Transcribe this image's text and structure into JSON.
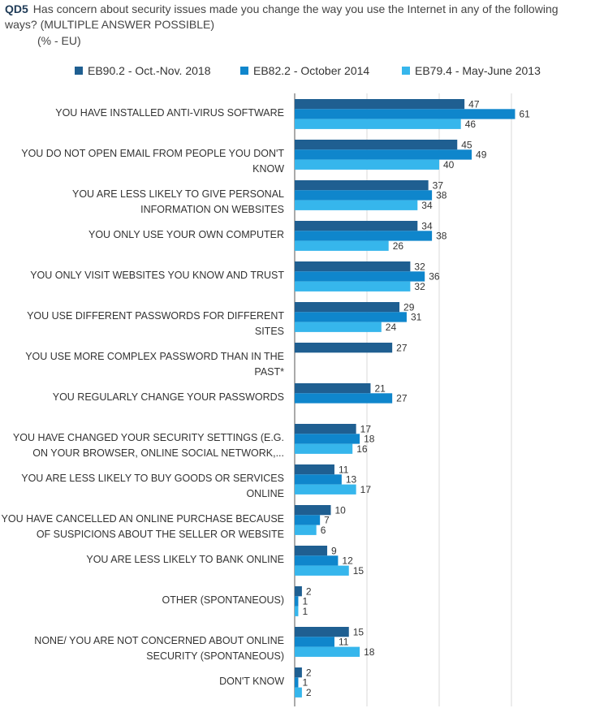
{
  "header": {
    "qid": "QD5",
    "question": "Has concern about security issues made you change the way you use the Internet in any of the following ways? (MULTIPLE ANSWER POSSIBLE)",
    "unit": "(% - EU)"
  },
  "colors": {
    "series0": "#1f5f91",
    "series1": "#0f86cc",
    "series2": "#36b6ec",
    "grid": "#d9d9d9",
    "axis": "#555555"
  },
  "chart_data": {
    "type": "bar",
    "orientation": "horizontal",
    "title": "Has concern about security issues made you change the way you use the Internet in any of the following ways? (MULTIPLE ANSWER POSSIBLE)",
    "xlim": [
      0,
      70
    ],
    "grid": true,
    "legend_position": "top",
    "categories": [
      "YOU HAVE INSTALLED ANTI-VIRUS SOFTWARE",
      "YOU DO NOT OPEN EMAIL FROM PEOPLE YOU DON'T KNOW",
      "YOU ARE LESS LIKELY TO GIVE PERSONAL INFORMATION ON WEBSITES",
      "YOU ONLY USE YOUR OWN COMPUTER",
      "YOU ONLY VISIT WEBSITES YOU KNOW AND TRUST",
      "YOU USE DIFFERENT PASSWORDS FOR DIFFERENT SITES",
      "YOU USE MORE COMPLEX PASSWORD THAN IN THE PAST*",
      "YOU REGULARLY CHANGE YOUR PASSWORDS",
      "YOU HAVE CHANGED YOUR SECURITY SETTINGS (E.G. ON YOUR BROWSER, ONLINE SOCIAL NETWORK,...",
      "YOU ARE LESS LIKELY TO BUY GOODS OR SERVICES ONLINE",
      "YOU HAVE CANCELLED AN ONLINE PURCHASE BECAUSE OF SUSPICIONS ABOUT THE SELLER OR WEBSITE",
      "YOU ARE LESS LIKELY TO BANK ONLINE",
      "OTHER (SPONTANEOUS)",
      "NONE/ YOU ARE NOT CONCERNED ABOUT ONLINE SECURITY (SPONTANEOUS)",
      "DON'T KNOW"
    ],
    "category_lines": [
      [
        "YOU HAVE INSTALLED ANTI-VIRUS SOFTWARE"
      ],
      [
        "YOU DO NOT OPEN EMAIL FROM PEOPLE YOU DON'T",
        "KNOW"
      ],
      [
        "YOU ARE LESS LIKELY TO GIVE PERSONAL",
        "INFORMATION ON WEBSITES"
      ],
      [
        "YOU ONLY USE YOUR OWN COMPUTER"
      ],
      [
        "YOU ONLY VISIT WEBSITES YOU KNOW AND TRUST"
      ],
      [
        "YOU USE DIFFERENT PASSWORDS FOR DIFFERENT SITES"
      ],
      [
        "YOU USE MORE COMPLEX PASSWORD THAN IN THE",
        "PAST*"
      ],
      [
        "YOU REGULARLY CHANGE YOUR PASSWORDS"
      ],
      [
        "YOU HAVE CHANGED YOUR SECURITY SETTINGS (E.G.",
        "ON YOUR BROWSER, ONLINE SOCIAL NETWORK,..."
      ],
      [
        "YOU ARE LESS LIKELY TO BUY GOODS OR SERVICES",
        "ONLINE"
      ],
      [
        "YOU HAVE CANCELLED AN ONLINE PURCHASE BECAUSE",
        "OF SUSPICIONS ABOUT THE SELLER OR WEBSITE"
      ],
      [
        "YOU ARE LESS LIKELY TO BANK ONLINE"
      ],
      [
        "OTHER (SPONTANEOUS)"
      ],
      [
        "NONE/ YOU ARE NOT CONCERNED ABOUT ONLINE",
        "SECURITY (SPONTANEOUS)"
      ],
      [
        "DON'T KNOW"
      ]
    ],
    "series": [
      {
        "name": "EB90.2 - Oct.-Nov. 2018",
        "values": [
          47,
          45,
          37,
          34,
          32,
          29,
          27,
          21,
          17,
          11,
          10,
          9,
          2,
          15,
          2
        ]
      },
      {
        "name": "EB82.2 - October 2014",
        "values": [
          61,
          49,
          38,
          38,
          36,
          31,
          null,
          27,
          18,
          13,
          7,
          12,
          1,
          11,
          1
        ]
      },
      {
        "name": "EB79.4 - May-June 2013",
        "values": [
          46,
          40,
          34,
          26,
          32,
          24,
          null,
          null,
          16,
          17,
          6,
          15,
          1,
          18,
          2
        ]
      }
    ]
  }
}
